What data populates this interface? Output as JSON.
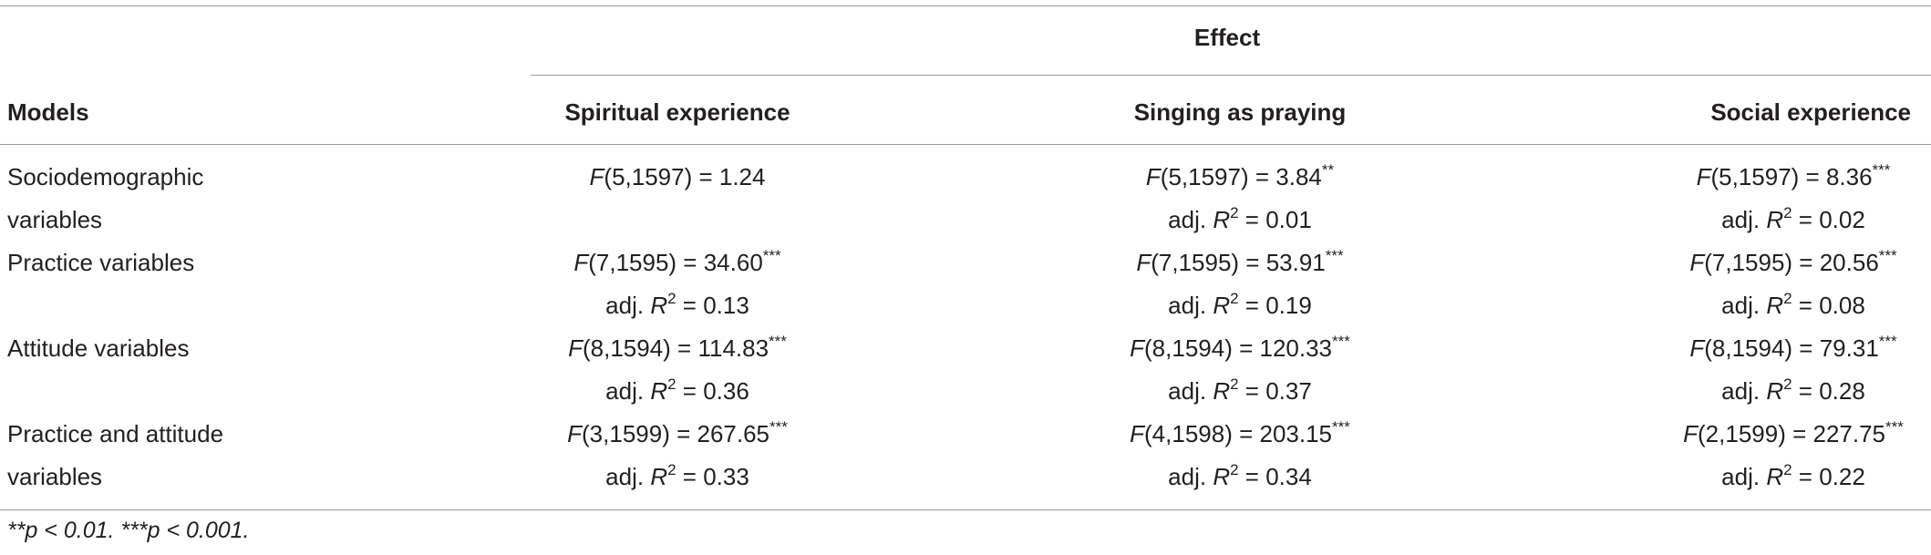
{
  "header": {
    "group_label": "Effect",
    "models_label": "Models",
    "columns": [
      "Spiritual experience",
      "Singing as praying",
      "Social experience"
    ]
  },
  "rows": [
    {
      "model_line1": "Sociodemographic",
      "model_line2": "variables",
      "cells": [
        {
          "stat": "(5,1597) = 1.24",
          "sig": "",
          "r2": ""
        },
        {
          "stat": "(5,1597) = 3.84",
          "sig": "**",
          "r2": "0.01"
        },
        {
          "stat": "(5,1597) = 8.36",
          "sig": "***",
          "r2": "0.02"
        }
      ]
    },
    {
      "model_line1": "Practice variables",
      "model_line2": "",
      "cells": [
        {
          "stat": "(7,1595) = 34.60",
          "sig": "***",
          "r2": "0.13"
        },
        {
          "stat": "(7,1595) = 53.91",
          "sig": "***",
          "r2": "0.19"
        },
        {
          "stat": "(7,1595) = 20.56",
          "sig": "***",
          "r2": "0.08"
        }
      ]
    },
    {
      "model_line1": "Attitude variables",
      "model_line2": "",
      "cells": [
        {
          "stat": "(8,1594) = 114.83",
          "sig": "***",
          "r2": "0.36"
        },
        {
          "stat": "(8,1594) = 120.33",
          "sig": "***",
          "r2": "0.37"
        },
        {
          "stat": "(8,1594) = 79.31",
          "sig": "***",
          "r2": "0.28"
        }
      ]
    },
    {
      "model_line1": "Practice and attitude",
      "model_line2": "variables",
      "cells": [
        {
          "stat": "(3,1599) = 267.65",
          "sig": "***",
          "r2": "0.33"
        },
        {
          "stat": "(4,1598) = 203.15",
          "sig": "***",
          "r2": "0.34"
        },
        {
          "stat": "(2,1599) = 227.75",
          "sig": "***",
          "r2": "0.22"
        }
      ]
    }
  ],
  "labels": {
    "f": "F",
    "adj": "adj. ",
    "r": "R",
    "r_exp": "2",
    "eq": " = "
  },
  "footnote": "**p < 0.01. ***p < 0.001."
}
